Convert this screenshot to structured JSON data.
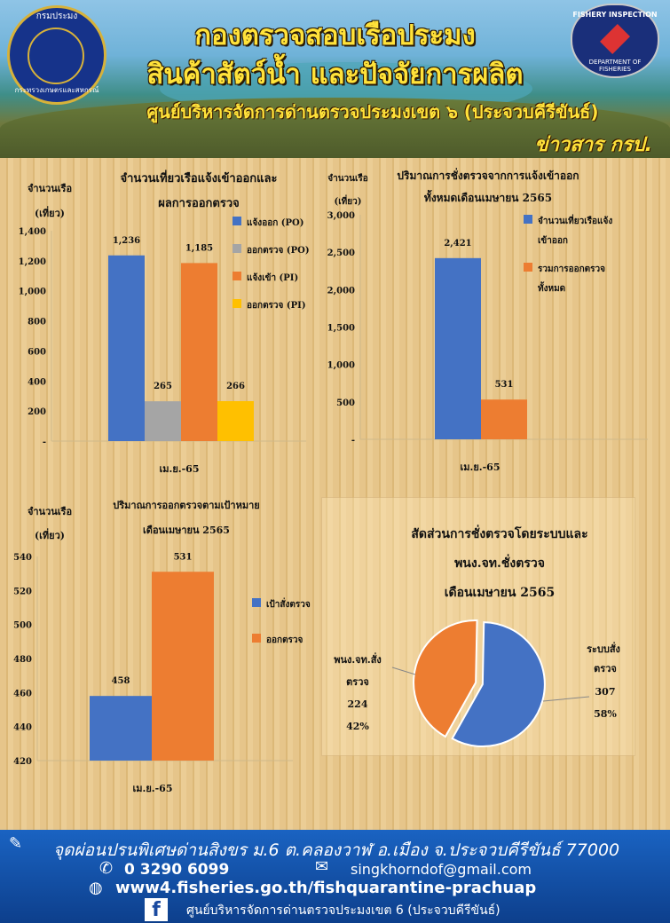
{
  "header": {
    "title_line1": "กองตรวจสอบเรือประมง",
    "title_line2": "สินค้าสัตว์น้ำ และปัจจัยการผลิต",
    "subtitle": "ศูนย์บริหารจัดการด่านตรวจประมงเขต ๖ (ประจวบคีรีขันธ์)",
    "tag": "ข่าวสาร กรป.",
    "logo_left_top": "กรมประมง",
    "logo_left_bottom": "กระทรวงเกษตรและสหกรณ์",
    "logo_right_top": "FISHERY INSPECTION",
    "logo_right_bottom": "DEPARTMENT OF FISHERIES"
  },
  "chart_data": [
    {
      "type": "bar",
      "title": "จำนวนเที่ยวเรือแจ้งเข้าออกและผลการออกตรวจ",
      "title_line1": "จำนวนเที่ยวเรือแจ้งเข้าออกและ",
      "title_line2": "ผลการออกตรวจ",
      "ylabel_line1": "จำนวนเรือ",
      "ylabel_line2": "(เที่ยว)",
      "xlabel": "เม.ย.-65",
      "ylim": [
        0,
        1400
      ],
      "yticks": [
        "-",
        "200",
        "400",
        "600",
        "800",
        "1,000",
        "1,200",
        "1,400"
      ],
      "series": [
        {
          "name": "แจ้งออก (PO)",
          "value": 1236,
          "label": "1,236",
          "color": "#4472c4"
        },
        {
          "name": "ออกตรวจ (PO)",
          "value": 265,
          "label": "265",
          "color": "#a5a5a5"
        },
        {
          "name": "แจ้งเข้า (PI)",
          "value": 1185,
          "label": "1,185",
          "color": "#ed7d31"
        },
        {
          "name": "ออกตรวจ (PI)",
          "value": 266,
          "label": "266",
          "color": "#ffc000"
        }
      ]
    },
    {
      "type": "bar",
      "title_line1": "ปริมาณการชั่งตรวจจากการแจ้งเข้าออก",
      "title_line2": "ทั้งหมดเดือนเมษายน 2565",
      "ylabel_line1": "จำนวนเรือ",
      "ylabel_line2": "(เที่ยว)",
      "xlabel": "เม.ย.-65",
      "ylim": [
        0,
        3000
      ],
      "yticks": [
        "-",
        "500",
        "1,000",
        "1,500",
        "2,000",
        "2,500",
        "3,000"
      ],
      "series": [
        {
          "name_line1": "จำนวนเที่ยวเรือแจ้ง",
          "name_line2": "เข้าออก",
          "value": 2421,
          "label": "2,421",
          "color": "#4472c4"
        },
        {
          "name_line1": "รวมการออกตรวจ",
          "name_line2": "ทั้งหมด",
          "value": 531,
          "label": "531",
          "color": "#ed7d31"
        }
      ]
    },
    {
      "type": "bar",
      "title_line1": "ปริมาณการออกตรวจตามเป้าหมาย",
      "title_line2": "เดือนเมษายน 2565",
      "ylabel_line1": "จำนวนเรือ",
      "ylabel_line2": "(เที่ยว)",
      "xlabel": "เม.ย.-65",
      "ylim": [
        420,
        540
      ],
      "yticks": [
        "420",
        "440",
        "460",
        "480",
        "500",
        "520",
        "540"
      ],
      "series": [
        {
          "name": "เป้าสั่งตรวจ",
          "value": 458,
          "label": "458",
          "color": "#4472c4"
        },
        {
          "name": "ออกตรวจ",
          "value": 531,
          "label": "531",
          "color": "#ed7d31"
        }
      ]
    },
    {
      "type": "pie",
      "title_line1": "สัดส่วนการชั่งตรวจโดยระบบและ",
      "title_line2": "พนง.จท.ชั่งตรวจ",
      "title_line3": "เดือนเมษายน 2565",
      "slices": [
        {
          "name_line1": "ระบบสั่ง",
          "name_line2": "ตรวจ",
          "value": 307,
          "value_label": "307",
          "percent": "58%",
          "color": "#4472c4"
        },
        {
          "name_line1": "พนง.จท.สั่ง",
          "name_line2": "ตรวจ",
          "value": 224,
          "value_label": "224",
          "percent": "42%",
          "color": "#ed7d31"
        }
      ]
    }
  ],
  "footer": {
    "address": "จุดผ่อนปรนพิเศษด่านสิงขร ม.6 ต.คลองวาฬ อ.เมือง จ.ประจวบคีรีขันธ์ 77000",
    "phone": "0 3290 6099",
    "email": "singkhorndof@gmail.com",
    "website": "www4.fisheries.go.th/fishquarantine-prachuap",
    "facebook": "ศูนย์บริหารจัดการด่านตรวจประมงเขต 6 (ประจวบคีรีขันธ์)"
  }
}
